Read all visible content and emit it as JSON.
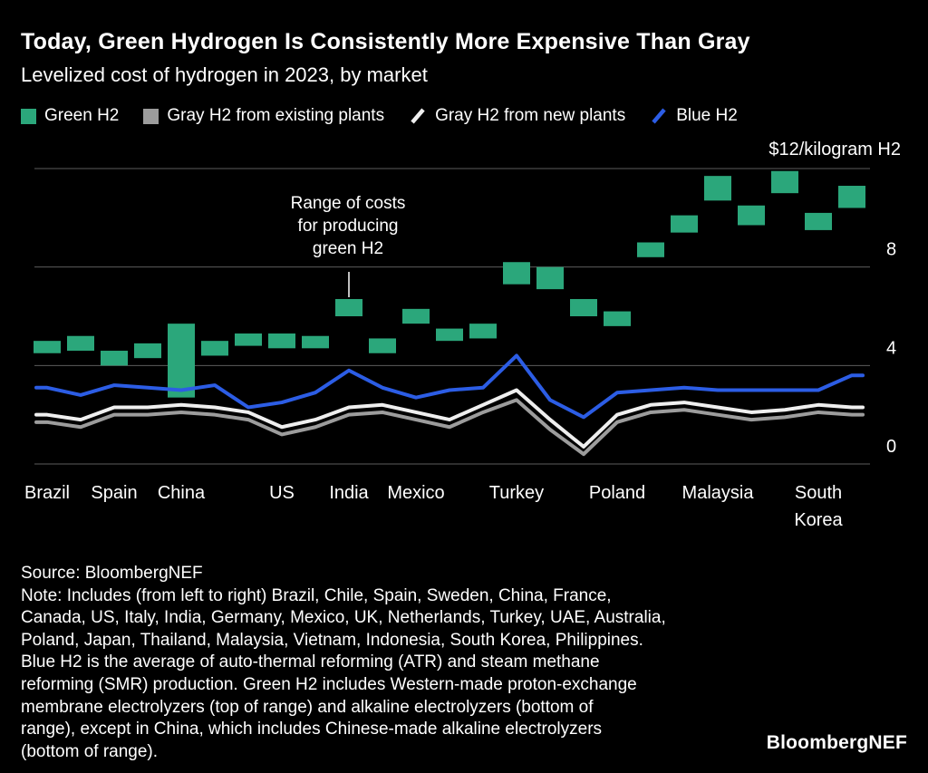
{
  "header": {
    "title": "Today, Green Hydrogen Is Consistently More Expensive Than Gray",
    "subtitle": "Levelized cost of hydrogen in 2023, by market"
  },
  "legend": [
    {
      "label": "Green H2",
      "marker": "square",
      "color_key": "green"
    },
    {
      "label": "Gray H2 from existing plants",
      "marker": "square",
      "color_key": "gray"
    },
    {
      "label": "Gray H2 from new plants",
      "marker": "slash",
      "color_key": "white"
    },
    {
      "label": "Blue H2",
      "marker": "slash",
      "color_key": "blue"
    }
  ],
  "colors": {
    "green": "#2BA77B",
    "gray": "#9C9C9C",
    "white": "#EFEFEF",
    "blue": "#2C5DE5",
    "grid": "#5C5C5C",
    "background": "#000000",
    "text": "#FFFFFF"
  },
  "annotation": {
    "text": "Range of costs\nfor producing\ngreen H2"
  },
  "axis": {
    "unit_label": "$12/kilogram H2",
    "gridline_values": [
      12,
      8,
      4,
      0
    ],
    "yticks": [
      {
        "value": 8,
        "label": "8"
      },
      {
        "value": 4,
        "label": "4"
      },
      {
        "value": 0,
        "label": "0"
      }
    ]
  },
  "chart_data": {
    "type": "range-bar + line combo",
    "title": "Levelized cost of hydrogen in 2023, by market",
    "ylabel": "$/kilogram H2",
    "ylim": [
      0,
      12
    ],
    "grid": true,
    "markets": [
      "Brazil",
      "Chile",
      "Spain",
      "Sweden",
      "China",
      "France",
      "Canada",
      "US",
      "Italy",
      "India",
      "Germany",
      "Mexico",
      "UK",
      "Netherlands",
      "Turkey",
      "UAE",
      "Australia",
      "Poland",
      "Japan",
      "Thailand",
      "Malaysia",
      "Vietnam",
      "Indonesia",
      "South Korea",
      "Philippines"
    ],
    "x_axis_labeled": [
      {
        "index": 0,
        "label": "Brazil"
      },
      {
        "index": 2,
        "label": "Spain"
      },
      {
        "index": 4,
        "label": "China"
      },
      {
        "index": 7,
        "label": "US"
      },
      {
        "index": 9,
        "label": "India"
      },
      {
        "index": 11,
        "label": "Mexico"
      },
      {
        "index": 14,
        "label": "Turkey"
      },
      {
        "index": 17,
        "label": "Poland"
      },
      {
        "index": 20,
        "label": "Malaysia"
      },
      {
        "index": 23,
        "label": "South\nKorea"
      }
    ],
    "series": [
      {
        "name": "Green H2",
        "type": "range_bar",
        "color_key": "green",
        "low": [
          4.5,
          4.6,
          4.0,
          4.3,
          2.7,
          4.4,
          4.8,
          4.7,
          4.7,
          6.0,
          4.5,
          5.7,
          5.0,
          5.1,
          7.3,
          7.1,
          6.0,
          5.6,
          8.4,
          9.4,
          10.7,
          9.7,
          11.0,
          9.5,
          10.4
        ],
        "high": [
          5.0,
          5.2,
          4.6,
          4.9,
          5.7,
          5.0,
          5.3,
          5.3,
          5.2,
          6.7,
          5.1,
          6.3,
          5.5,
          5.7,
          8.2,
          8.0,
          6.7,
          6.2,
          9.0,
          10.1,
          11.7,
          10.5,
          11.9,
          10.2,
          11.3
        ]
      },
      {
        "name": "Gray H2 from existing plants",
        "type": "line",
        "color_key": "gray",
        "values": [
          1.7,
          1.5,
          2.0,
          2.0,
          2.1,
          2.0,
          1.8,
          1.2,
          1.5,
          2.0,
          2.1,
          1.8,
          1.5,
          2.1,
          2.6,
          1.4,
          0.4,
          1.7,
          2.1,
          2.2,
          2.0,
          1.8,
          1.9,
          2.1,
          2.0
        ]
      },
      {
        "name": "Gray H2 from new plants",
        "type": "line",
        "color_key": "white",
        "values": [
          2.0,
          1.8,
          2.3,
          2.3,
          2.4,
          2.3,
          2.1,
          1.5,
          1.8,
          2.3,
          2.4,
          2.1,
          1.8,
          2.4,
          3.0,
          1.8,
          0.7,
          2.0,
          2.4,
          2.5,
          2.3,
          2.1,
          2.2,
          2.4,
          2.3
        ]
      },
      {
        "name": "Blue H2",
        "type": "line",
        "color_key": "blue",
        "values": [
          3.1,
          2.8,
          3.2,
          3.1,
          3.0,
          3.2,
          2.3,
          2.5,
          2.9,
          3.8,
          3.1,
          2.7,
          3.0,
          3.1,
          4.4,
          2.6,
          1.9,
          2.9,
          3.0,
          3.1,
          3.0,
          3.0,
          3.0,
          3.0,
          3.6
        ]
      }
    ]
  },
  "footer": {
    "source": "Source: BloombergNEF",
    "note": "Note: Includes (from left to right) Brazil, Chile, Spain, Sweden, China, France,\nCanada, US, Italy, India, Germany, Mexico, UK, Netherlands, Turkey, UAE, Australia,\nPoland, Japan, Thailand, Malaysia, Vietnam, Indonesia, South Korea, Philippines.\nBlue H2 is the average of auto-thermal reforming (ATR) and steam methane\nreforming (SMR) production. Green H2 includes Western-made proton-exchange\nmembrane electrolyzers (top of range) and alkaline electrolyzers (bottom of\nrange), except in China, which includes Chinese-made alkaline electrolyzers\n(bottom of range).",
    "logo": "BloombergNEF"
  }
}
